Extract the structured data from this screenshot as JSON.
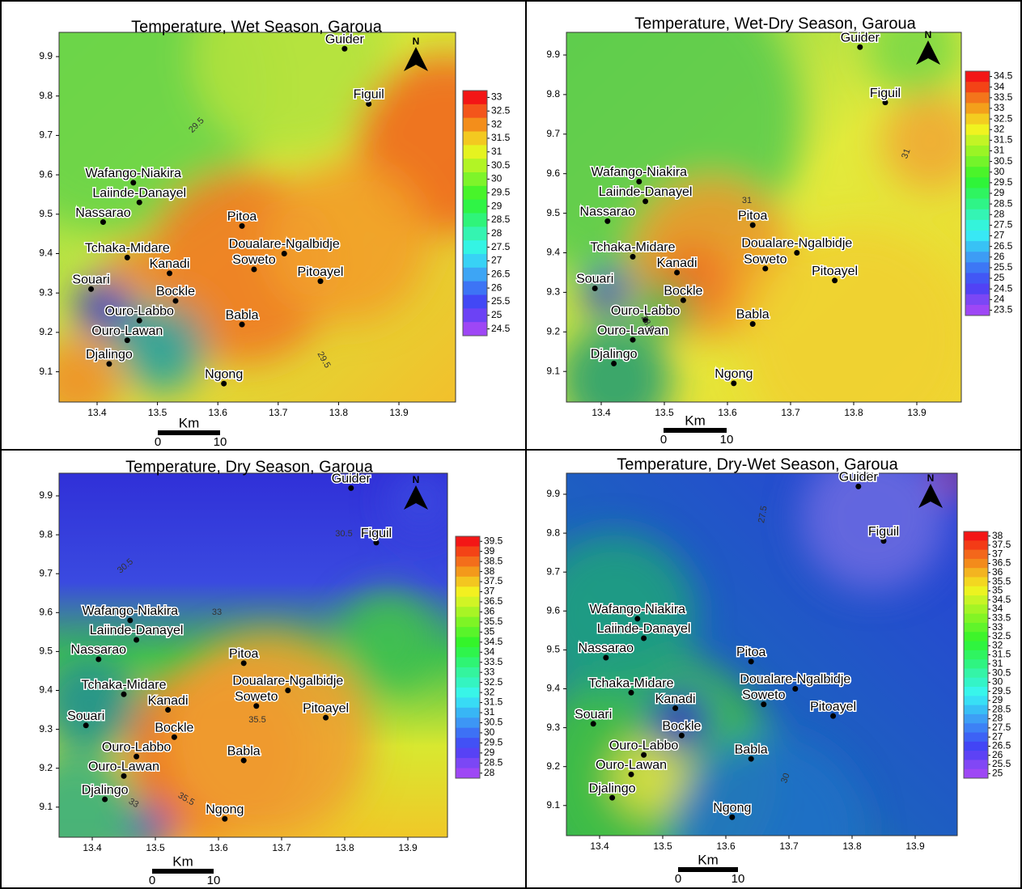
{
  "places": [
    "Guider",
    "Figuil",
    "Wafango-Niakira",
    "Laiinde-Danayel",
    "Nassarao",
    "Pitoa",
    "Tchaka-Midare",
    "Doualare-Ngalbidje",
    "Kanadi",
    "Soweto",
    "Pitoayel",
    "Souari",
    "Bockle",
    "Ouro-Labbo",
    "Babla",
    "Ouro-Lawan",
    "Djalingo",
    "Ngong"
  ],
  "panels": [
    {
      "title": "Temperature, Wet Season, Garoua",
      "xticks": [
        13.4,
        13.5,
        13.6,
        13.7,
        13.8,
        13.9
      ],
      "yticks": [
        9.9,
        9.8,
        9.7,
        9.6,
        9.5,
        9.4,
        9.3,
        9.2,
        9.1
      ],
      "colorbar": [
        33,
        32.5,
        32,
        31.5,
        31,
        30.5,
        30,
        29.5,
        29,
        28.5,
        28,
        27.5,
        27,
        26.5,
        26,
        25.5,
        25,
        24.5
      ],
      "contour_labels": [
        "29.5",
        "29.5"
      ],
      "scale": {
        "unit": "Km",
        "start": 0,
        "end": 10
      },
      "north": "N"
    },
    {
      "title": "Temperature, Wet-Dry Season, Garoua",
      "xticks": [
        13.4,
        13.5,
        13.6,
        13.7,
        13.8,
        13.9
      ],
      "yticks": [
        9.9,
        9.8,
        9.7,
        9.6,
        9.5,
        9.4,
        9.3,
        9.2,
        9.1
      ],
      "colorbar": [
        34.5,
        34,
        33.5,
        33,
        32.5,
        32,
        31.5,
        31,
        30.5,
        30,
        29.5,
        29,
        28.5,
        28,
        27.5,
        27,
        26.5,
        26,
        25.5,
        25,
        24.5,
        24,
        23.5
      ],
      "contour_labels": [
        "31",
        "31",
        "28.5"
      ],
      "scale": {
        "unit": "Km",
        "start": 0,
        "end": 10
      },
      "north": "N"
    },
    {
      "title": "Temperature, Dry Season, Garoua",
      "xticks": [
        13.4,
        13.5,
        13.6,
        13.7,
        13.8,
        13.9
      ],
      "yticks": [
        9.9,
        9.8,
        9.7,
        9.6,
        9.5,
        9.4,
        9.3,
        9.2,
        9.1
      ],
      "colorbar": [
        39.5,
        39,
        38.5,
        38,
        37.5,
        37,
        36.5,
        36,
        35.5,
        35,
        34.5,
        34,
        33.5,
        33,
        32.5,
        32,
        31.5,
        31,
        30.5,
        30,
        29.5,
        29,
        28.5,
        28
      ],
      "contour_labels": [
        "30.5",
        "30.5",
        "33",
        "35.5",
        "35.5",
        "33"
      ],
      "scale": {
        "unit": "Km",
        "start": 0,
        "end": 10
      },
      "north": "N"
    },
    {
      "title": "Temperature, Dry-Wet Season, Garoua",
      "xticks": [
        13.4,
        13.5,
        13.6,
        13.7,
        13.8,
        13.9
      ],
      "yticks": [
        9.9,
        9.8,
        9.7,
        9.6,
        9.5,
        9.4,
        9.3,
        9.2,
        9.1
      ],
      "colorbar": [
        38,
        37.5,
        37,
        36.5,
        36,
        35.5,
        35,
        34.5,
        34,
        33.5,
        33,
        32.5,
        32,
        31.5,
        31,
        30.5,
        30,
        29.5,
        29,
        28.5,
        28,
        27.5,
        27,
        26.5,
        26,
        25.5,
        25
      ],
      "contour_labels": [
        "27.5",
        "30"
      ],
      "scale": {
        "unit": "Km",
        "start": 0,
        "end": 10
      },
      "north": "N"
    }
  ]
}
